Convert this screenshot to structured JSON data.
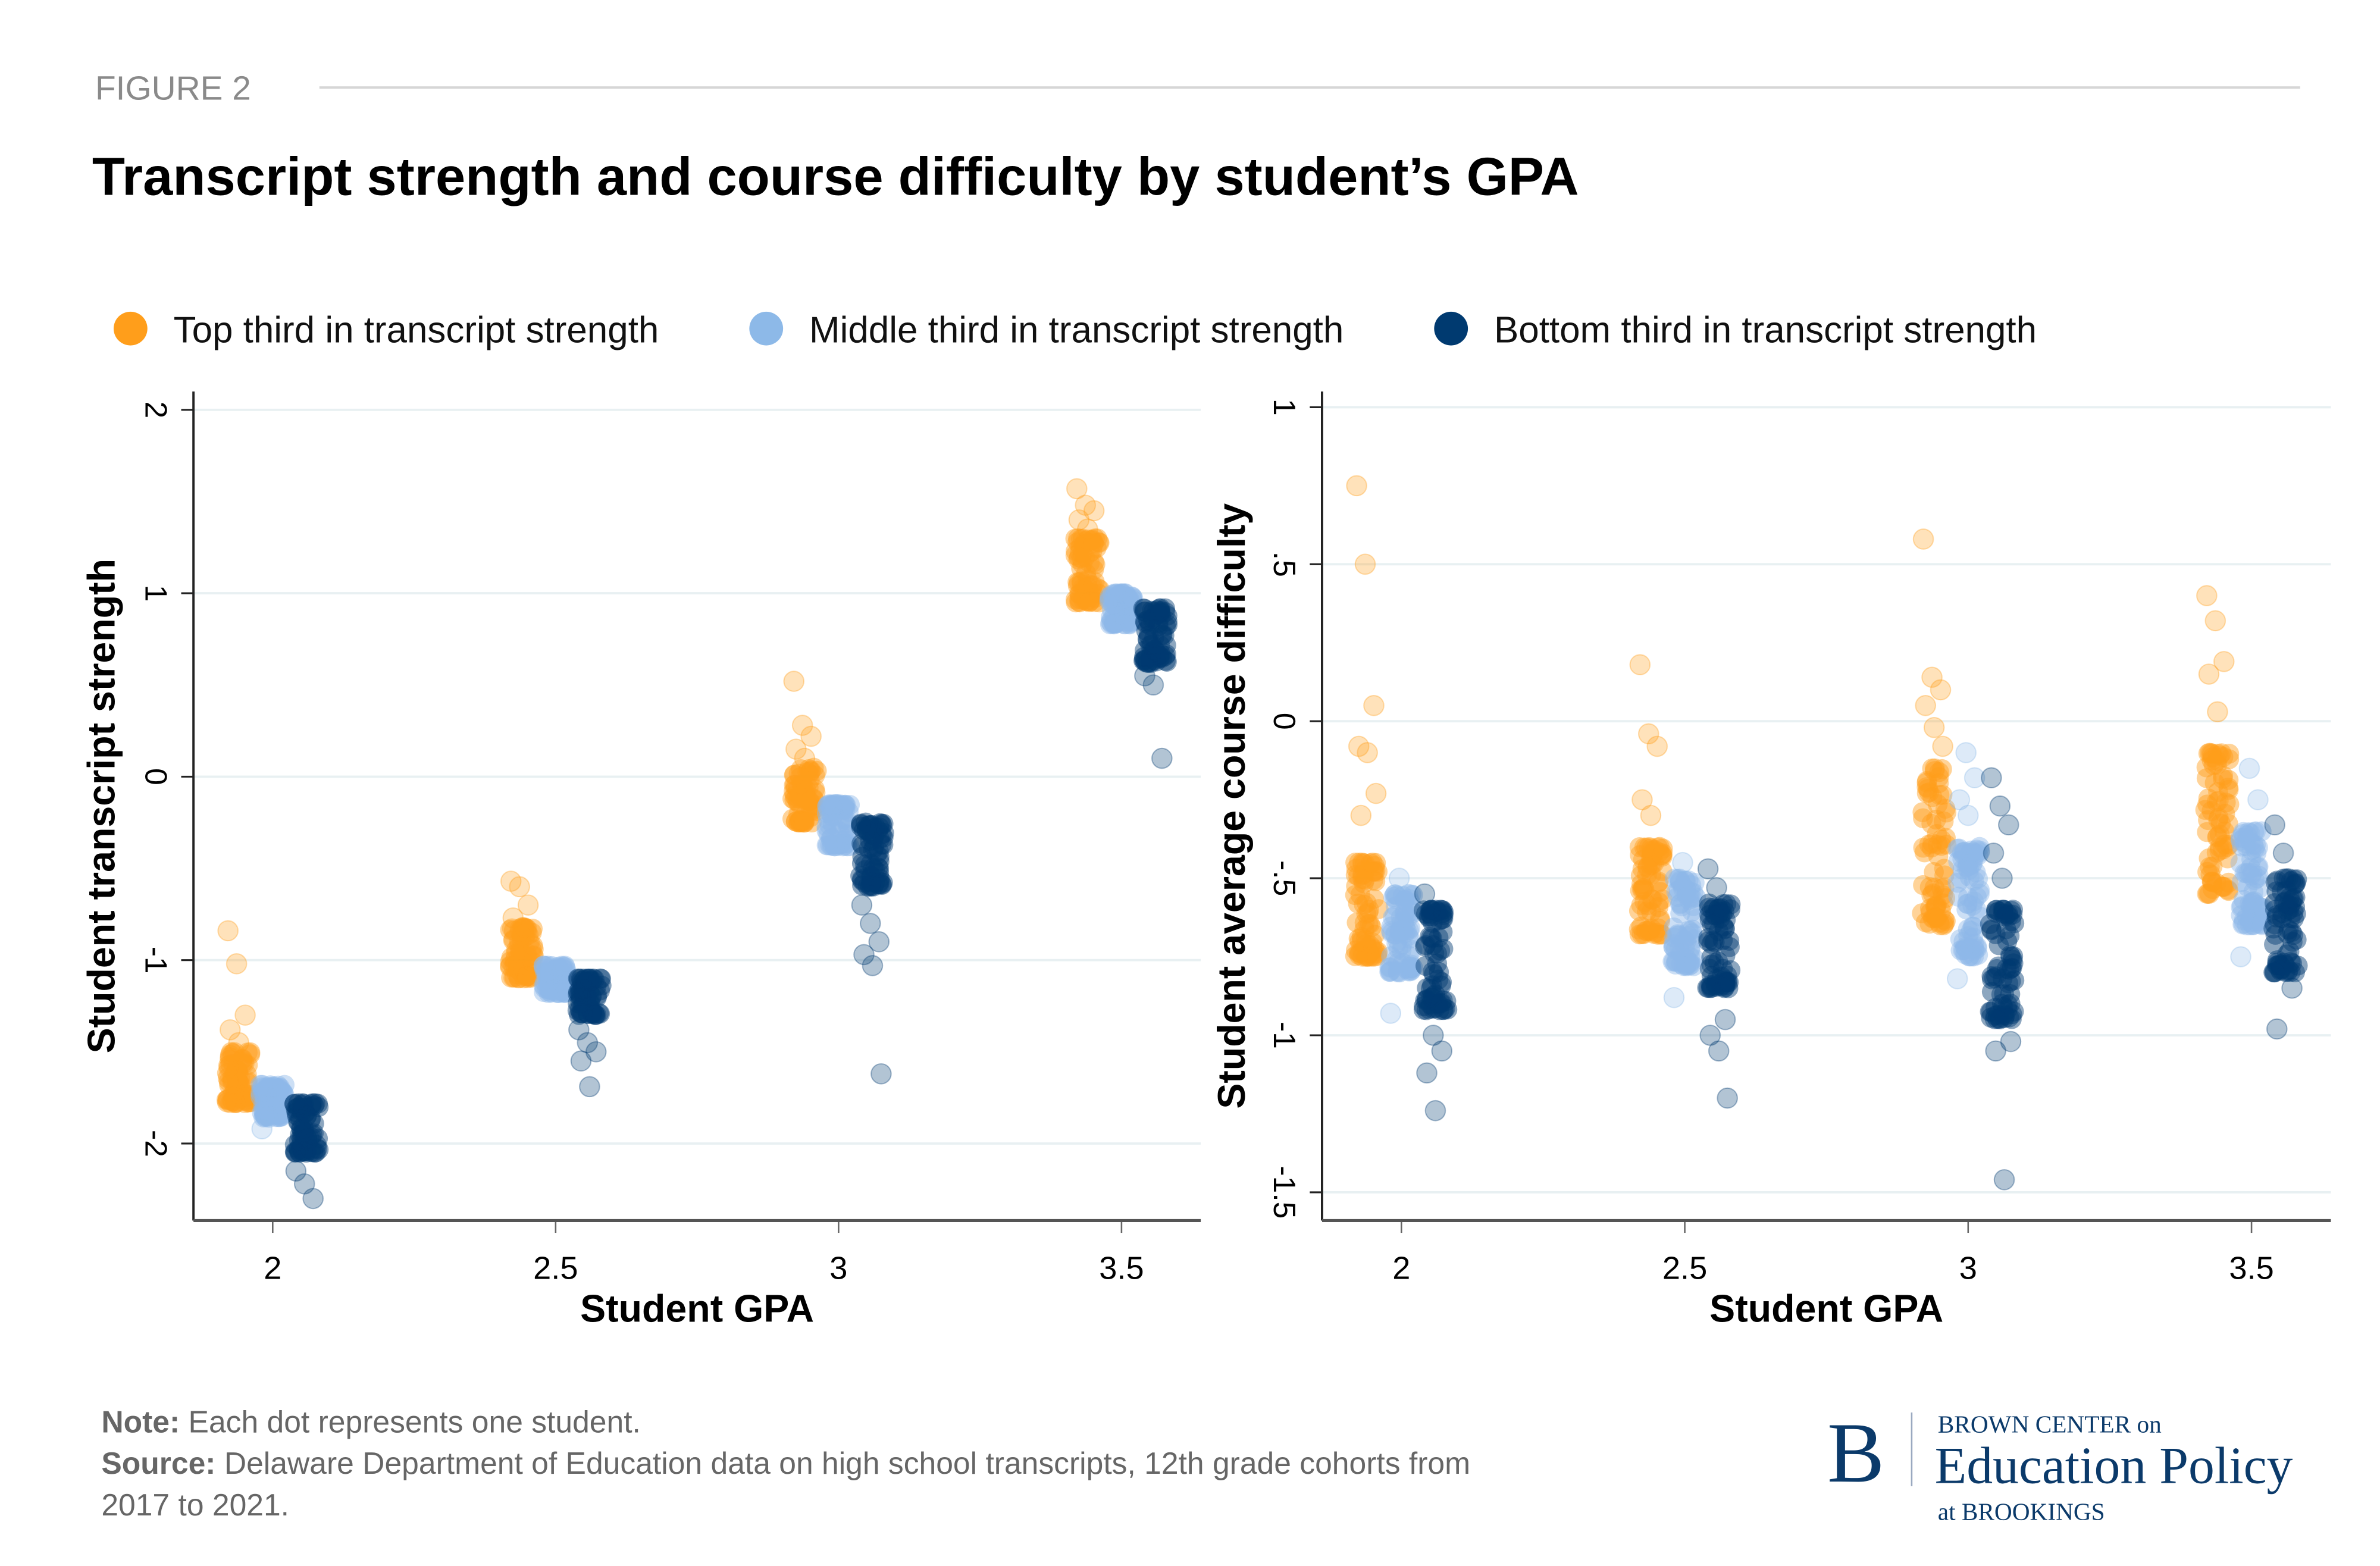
{
  "header": {
    "figure_label": "FIGURE 2",
    "title": "Transcript strength and course difficulty by student’s GPA"
  },
  "legend": [
    {
      "label": "Top third in transcript strength",
      "color": "#FF9E1B"
    },
    {
      "label": "Middle third in transcript strength",
      "color": "#8DB9E8"
    },
    {
      "label": "Bottom third in transcript strength",
      "color": "#003A70"
    }
  ],
  "footer": {
    "note_label": "Note:",
    "note_text": " Each dot represents one student.",
    "source_label": "Source:",
    "source_text": " Delaware Department of Education data on high school transcripts, 12th grade cohorts from",
    "source_text_2": "2017 to 2021."
  },
  "logo": {
    "letter": "B",
    "line1": "BROWN CENTER on",
    "line2": "Education Policy",
    "line3": "at BROOKINGS",
    "color": "#0B3A6A"
  },
  "chart_data": [
    {
      "type": "scatter",
      "title": "",
      "xlabel": "Student GPA",
      "ylabel": "Student transcript strength",
      "xticks": [
        2,
        2.5,
        3,
        3.5
      ],
      "xtick_labels": [
        "2",
        "2.5",
        "3",
        "3.5"
      ],
      "yticks": [
        2,
        1,
        0,
        -1,
        -2
      ],
      "ytick_labels": [
        "2",
        "1",
        "0",
        "-1",
        "-2"
      ],
      "xlim": [
        1.86,
        3.64
      ],
      "ylim": [
        -2.42,
        2.1
      ],
      "grid": true,
      "legend_position": "top",
      "series": [
        {
          "name": "Top third in transcript strength",
          "clusters": [
            {
              "gpa": 1.94,
              "core": [
                -1.78,
                -1.5
              ],
              "outliers": [
                -0.84,
                -1.02,
                -1.3,
                -1.38,
                -1.45
              ]
            },
            {
              "gpa": 2.44,
              "core": [
                -1.1,
                -0.82
              ],
              "outliers": [
                -0.57,
                -0.6,
                -0.7,
                -0.77
              ]
            },
            {
              "gpa": 2.94,
              "core": [
                -0.25,
                0.05
              ],
              "outliers": [
                0.52,
                0.28,
                0.22,
                0.15,
                0.1
              ]
            },
            {
              "gpa": 3.44,
              "core": [
                0.95,
                1.3
              ],
              "outliers": [
                1.57,
                1.48,
                1.45,
                1.4,
                1.35
              ]
            }
          ]
        },
        {
          "name": "Middle third in transcript strength",
          "clusters": [
            {
              "gpa": 2.0,
              "core": [
                -1.86,
                -1.68
              ],
              "outliers": [
                -1.92
              ]
            },
            {
              "gpa": 2.5,
              "core": [
                -1.18,
                -1.03
              ],
              "outliers": []
            },
            {
              "gpa": 3.0,
              "core": [
                -0.38,
                -0.15
              ],
              "outliers": []
            },
            {
              "gpa": 3.5,
              "core": [
                0.83,
                1.0
              ],
              "outliers": []
            }
          ]
        },
        {
          "name": "Bottom third in transcript strength",
          "clusters": [
            {
              "gpa": 2.06,
              "core": [
                -2.05,
                -1.78
              ],
              "outliers": [
                -2.15,
                -2.22,
                -2.3
              ]
            },
            {
              "gpa": 2.56,
              "core": [
                -1.3,
                -1.1
              ],
              "outliers": [
                -1.38,
                -1.45,
                -1.5,
                -1.55,
                -1.69
              ]
            },
            {
              "gpa": 3.06,
              "core": [
                -0.6,
                -0.25
              ],
              "outliers": [
                -0.7,
                -0.8,
                -0.9,
                -0.97,
                -1.03,
                -1.62
              ]
            },
            {
              "gpa": 3.56,
              "core": [
                0.62,
                0.92
              ],
              "outliers": [
                0.55,
                0.5,
                0.1
              ]
            }
          ]
        }
      ]
    },
    {
      "type": "scatter",
      "title": "",
      "xlabel": "Student GPA",
      "ylabel": "Student average course difficulty",
      "xticks": [
        2,
        2.5,
        3,
        3.5
      ],
      "xtick_labels": [
        "2",
        "2.5",
        "3",
        "3.5"
      ],
      "yticks": [
        1,
        0.5,
        0,
        -0.5,
        -1,
        -1.5
      ],
      "ytick_labels": [
        "1",
        ".5",
        "0",
        "-.5",
        "-1",
        "-1.5"
      ],
      "xlim": [
        1.86,
        3.64
      ],
      "ylim": [
        -1.59,
        1.05
      ],
      "grid": true,
      "legend_position": "top",
      "series": [
        {
          "name": "Top third in transcript strength",
          "clusters": [
            {
              "gpa": 1.94,
              "core": [
                -0.75,
                -0.45
              ],
              "outliers": [
                0.75,
                0.5,
                0.05,
                -0.08,
                -0.1,
                -0.23,
                -0.3
              ]
            },
            {
              "gpa": 2.44,
              "core": [
                -0.68,
                -0.4
              ],
              "outliers": [
                0.18,
                -0.04,
                -0.08,
                -0.25,
                -0.3
              ]
            },
            {
              "gpa": 2.94,
              "core": [
                -0.65,
                -0.15
              ],
              "outliers": [
                0.58,
                0.14,
                0.1,
                0.05,
                -0.02,
                -0.08
              ]
            },
            {
              "gpa": 3.44,
              "core": [
                -0.55,
                -0.1
              ],
              "outliers": [
                0.4,
                0.32,
                0.19,
                0.15,
                0.03
              ]
            }
          ]
        },
        {
          "name": "Middle third in transcript strength",
          "clusters": [
            {
              "gpa": 2.0,
              "core": [
                -0.8,
                -0.55
              ],
              "outliers": [
                -0.93,
                -0.5
              ]
            },
            {
              "gpa": 2.5,
              "core": [
                -0.78,
                -0.5
              ],
              "outliers": [
                -0.88,
                -0.45
              ]
            },
            {
              "gpa": 3.0,
              "core": [
                -0.75,
                -0.4
              ],
              "outliers": [
                -0.82,
                -0.1,
                -0.18,
                -0.25,
                -0.3
              ]
            },
            {
              "gpa": 3.5,
              "core": [
                -0.65,
                -0.35
              ],
              "outliers": [
                -0.75,
                -0.15,
                -0.25
              ]
            }
          ]
        },
        {
          "name": "Bottom third in transcript strength",
          "clusters": [
            {
              "gpa": 2.06,
              "core": [
                -0.92,
                -0.6
              ],
              "outliers": [
                -0.55,
                -1.0,
                -1.05,
                -1.12,
                -1.24
              ]
            },
            {
              "gpa": 2.56,
              "core": [
                -0.85,
                -0.58
              ],
              "outliers": [
                -0.47,
                -0.53,
                -0.95,
                -1.0,
                -1.05,
                -1.2
              ]
            },
            {
              "gpa": 3.06,
              "core": [
                -0.95,
                -0.6
              ],
              "outliers": [
                -0.18,
                -0.27,
                -0.33,
                -0.42,
                -0.5,
                -1.02,
                -1.05,
                -1.46
              ]
            },
            {
              "gpa": 3.56,
              "core": [
                -0.8,
                -0.5
              ],
              "outliers": [
                -0.33,
                -0.42,
                -0.85,
                -0.98
              ]
            }
          ]
        }
      ]
    }
  ]
}
